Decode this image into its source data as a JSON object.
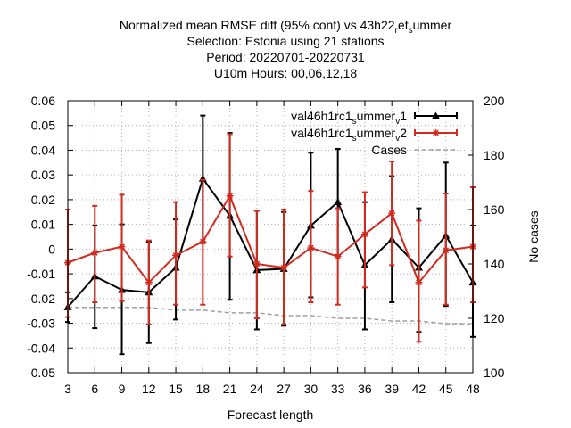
{
  "chart_data": {
    "type": "line",
    "title_lines": [
      "Normalized mean RMSE diff (95% conf) vs 43h22_ref_summer",
      "Selection: Estonia using    21 stations",
      "Period: 20220701-20220731",
      "U10m   Hours:  00,06,12,18"
    ],
    "title_rich": [
      [
        {
          "t": "Normalized mean RMSE diff (95% conf) vs 43h22"
        },
        {
          "t": "r",
          "sub": true
        },
        {
          "t": "ef"
        },
        {
          "t": "s",
          "sub": true
        },
        {
          "t": "ummer"
        }
      ],
      [
        {
          "t": "Selection: Estonia using    21 stations"
        }
      ],
      [
        {
          "t": "Period: 20220701-20220731"
        }
      ],
      [
        {
          "t": "U10m   Hours:  00,06,12,18"
        }
      ]
    ],
    "xlabel": "Forecast length",
    "ylabel": "",
    "y2label": "No cases",
    "x_ticks": [
      3,
      6,
      9,
      12,
      15,
      18,
      21,
      24,
      27,
      30,
      33,
      36,
      39,
      42,
      45,
      48
    ],
    "y_ticks": [
      "0.06",
      "0.05",
      "0.04",
      "0.03",
      "0.02",
      "0.01",
      "0",
      "-0.01",
      "-0.02",
      "-0.03",
      "-0.04",
      "-0.05"
    ],
    "y2_ticks": [
      "200",
      "180",
      "160",
      "140",
      "120",
      "100"
    ],
    "xlim": [
      3,
      48
    ],
    "ylim": [
      -0.05,
      0.06
    ],
    "y2lim": [
      100,
      200
    ],
    "grid": true,
    "legend_position": "top-right",
    "series": [
      {
        "name": "val46h1rc1_summer_v1",
        "label_rich": [
          {
            "t": "val46h1rc1"
          },
          {
            "t": "s",
            "sub": true
          },
          {
            "t": "ummer"
          },
          {
            "t": "v",
            "sub": true
          },
          {
            "t": "1"
          }
        ],
        "color": "#000000",
        "marker": "triangle",
        "x": [
          3,
          6,
          9,
          12,
          15,
          18,
          21,
          24,
          27,
          30,
          33,
          36,
          39,
          42,
          45,
          48
        ],
        "y": [
          -0.0235,
          -0.011,
          -0.0165,
          -0.0175,
          -0.0075,
          0.0285,
          0.0135,
          -0.0085,
          -0.008,
          0.0095,
          0.019,
          -0.0065,
          0.004,
          -0.0075,
          0.0055,
          -0.0135
        ],
        "err_low": [
          -0.0295,
          -0.032,
          -0.0425,
          -0.038,
          -0.0285,
          0.0025,
          -0.0205,
          -0.0325,
          -0.031,
          -0.0195,
          -0.0025,
          -0.0325,
          -0.0215,
          -0.0335,
          -0.023,
          -0.0355
        ],
        "err_high": [
          -0.0175,
          0.0095,
          0.01,
          0.003,
          0.012,
          0.054,
          0.047,
          0.0155,
          0.015,
          0.039,
          0.0405,
          0.019,
          0.0295,
          0.0165,
          0.035,
          0.0095
        ]
      },
      {
        "name": "val46h1rc1_summer_v2",
        "label_rich": [
          {
            "t": "val46h1rc1"
          },
          {
            "t": "s",
            "sub": true
          },
          {
            "t": "ummer"
          },
          {
            "t": "v",
            "sub": true
          },
          {
            "t": "2"
          }
        ],
        "color": "#d42a1e",
        "marker": "star",
        "x": [
          3,
          6,
          9,
          12,
          15,
          18,
          21,
          24,
          27,
          30,
          33,
          36,
          39,
          42,
          45,
          48
        ],
        "y": [
          -0.0055,
          -0.0015,
          0.001,
          -0.0135,
          -0.0025,
          0.003,
          0.0215,
          -0.006,
          -0.0075,
          0.0005,
          -0.003,
          0.006,
          0.0145,
          -0.0135,
          -0.0005,
          0.001
        ],
        "err_low": [
          -0.0275,
          -0.0215,
          -0.021,
          -0.0305,
          -0.0225,
          -0.0225,
          -0.003,
          -0.028,
          -0.0305,
          -0.0215,
          -0.0225,
          -0.0155,
          -0.0065,
          -0.0375,
          -0.0225,
          -0.0215
        ],
        "err_high": [
          0.016,
          0.0175,
          0.022,
          0.0035,
          0.019,
          0.028,
          0.0465,
          0.0155,
          0.016,
          0.0235,
          0.0165,
          0.023,
          0.0355,
          0.0115,
          0.0225,
          0.025
        ]
      },
      {
        "name": "Cases",
        "label_rich": [
          {
            "t": "Cases"
          }
        ],
        "color": "#a0a0a0",
        "style": "dashed",
        "axis": "y2",
        "x": [
          3,
          6,
          9,
          12,
          15,
          18,
          21,
          24,
          27,
          30,
          33,
          36,
          39,
          42,
          45,
          48
        ],
        "y": [
          124,
          124,
          124,
          124,
          123,
          123,
          122,
          122,
          121,
          121,
          120,
          120,
          119,
          119,
          118,
          118
        ]
      }
    ]
  }
}
